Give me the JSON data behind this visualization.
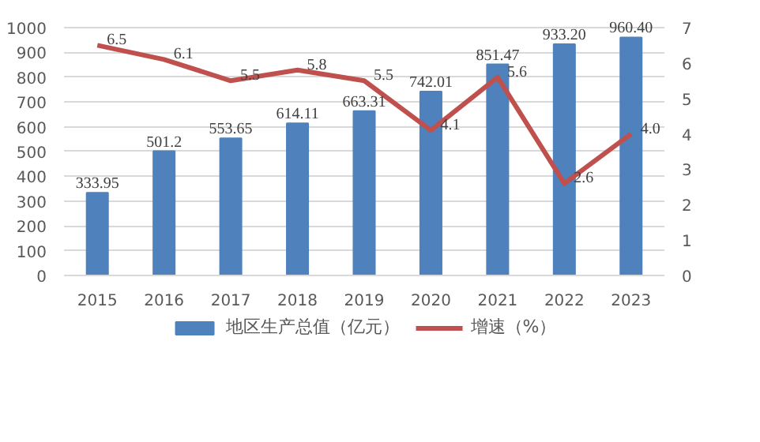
{
  "chart_data": {
    "type": "bar",
    "categories": [
      "2015",
      "2016",
      "2017",
      "2018",
      "2019",
      "2020",
      "2021",
      "2022",
      "2023"
    ],
    "series": [
      {
        "name": "地区生产总值（亿元）",
        "color": "#4f81bd",
        "values": [
          333.95,
          501.2,
          553.65,
          614.11,
          663.31,
          742.01,
          851.47,
          933.2,
          960.4
        ],
        "value_labels": [
          "333.95",
          "501.2",
          "553.65",
          "614.11",
          "663.31",
          "742.01",
          "851.47",
          "933.20",
          "960.40"
        ]
      },
      {
        "name": "增速（%）",
        "type": "line",
        "axis": "y2",
        "color": "#c0504d",
        "values": [
          6.5,
          6.1,
          5.5,
          5.8,
          5.5,
          4.1,
          5.6,
          2.6,
          4.0
        ],
        "value_labels": [
          "6.5",
          "6.1",
          "5.5",
          "5.8",
          "5.5",
          "4.1",
          "5.6",
          "2.6",
          "4.0"
        ]
      }
    ],
    "ylim": [
      0,
      1000
    ],
    "yticks": [
      0,
      100,
      200,
      300,
      400,
      500,
      600,
      700,
      800,
      900,
      1000
    ],
    "y2lim": [
      0,
      7
    ],
    "y2ticks": [
      0,
      1,
      2,
      3,
      4,
      5,
      6,
      7
    ],
    "grid": "y",
    "legend": "bottom",
    "marker": "none",
    "line_style": "solid"
  }
}
